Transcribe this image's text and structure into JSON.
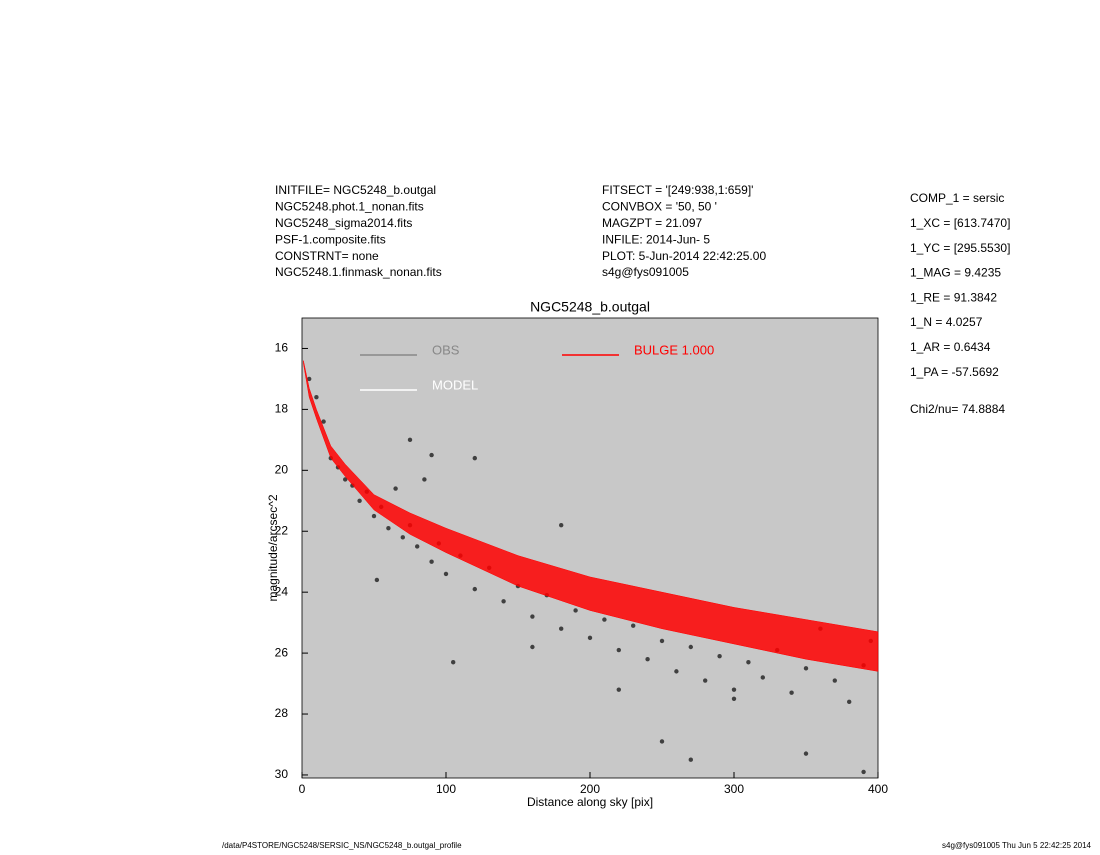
{
  "info_left": [
    "INITFILE= NGC5248_b.outgal",
    "NGC5248.phot.1_nonan.fits",
    "NGC5248_sigma2014.fits",
    "PSF-1.composite.fits",
    "CONSTRNT= none",
    "NGC5248.1.finmask_nonan.fits"
  ],
  "info_mid": [
    "FITSECT = '[249:938,1:659]'",
    "CONVBOX = '50, 50  '",
    "MAGZPT =            21.097",
    "INFILE: 2014-Jun- 5",
    "PLOT:  5-Jun-2014 22:42:25.00",
    "s4g@fys091005"
  ],
  "components": [
    "COMP_1  = sersic",
    "1_XC    = [613.7470]",
    "1_YC    = [295.5530]",
    "1_MAG   = 9.4235",
    "1_RE    = 91.3842",
    "1_N     = 4.0257",
    "1_AR    = 0.6434",
    "1_PA    = -57.5692"
  ],
  "chi2": "Chi2/nu=     74.8884",
  "footer_left": "/data/P4STORE/NGC5248/SERSIC_NS/NGC5248_b.outgal_profile",
  "footer_right": "s4g@fys091005  Thu Jun  5 22:42:25 2014",
  "chart_data": {
    "type": "scatter",
    "title": "NGC5248_b.outgal",
    "x_label": "Distance along sky [pix]",
    "y_label": "magnitude/arcsec^2",
    "xlim": [
      0,
      400
    ],
    "xticks": [
      0,
      100,
      200,
      300,
      400
    ],
    "ylim": [
      15,
      30.1
    ],
    "yticks": [
      16,
      18,
      20,
      22,
      24,
      26,
      28,
      30
    ],
    "y_inverted": true,
    "background": "#c8c8c8",
    "series": [
      {
        "name": "OBS",
        "color": "#404040",
        "legend_color": "#888888",
        "x": [
          5,
          10,
          15,
          20,
          25,
          30,
          35,
          40,
          45,
          50,
          55,
          60,
          65,
          70,
          75,
          80,
          85,
          90,
          95,
          100,
          110,
          120,
          130,
          140,
          150,
          160,
          170,
          180,
          190,
          200,
          210,
          220,
          230,
          240,
          250,
          260,
          270,
          280,
          290,
          300,
          310,
          320,
          330,
          340,
          350,
          360,
          370,
          380,
          390,
          395,
          52,
          75,
          105,
          180,
          250,
          270,
          350,
          390,
          300,
          220,
          160,
          120,
          90
        ],
        "values": [
          17.0,
          17.6,
          18.4,
          19.6,
          19.9,
          20.3,
          20.5,
          21.0,
          20.7,
          21.5,
          21.2,
          21.9,
          20.6,
          22.2,
          21.8,
          22.5,
          20.3,
          23.0,
          22.4,
          23.4,
          22.8,
          23.9,
          23.2,
          24.3,
          23.8,
          24.8,
          24.1,
          25.2,
          24.6,
          25.5,
          24.9,
          25.9,
          25.1,
          26.2,
          25.6,
          26.6,
          25.8,
          26.9,
          26.1,
          27.2,
          26.3,
          26.8,
          25.9,
          27.3,
          26.5,
          25.2,
          26.9,
          27.6,
          26.4,
          25.6,
          23.6,
          19.0,
          26.3,
          21.8,
          28.9,
          29.5,
          29.3,
          29.9,
          27.5,
          27.2,
          25.8,
          19.6,
          19.5
        ]
      },
      {
        "name": "MODEL",
        "color": "#ffffff",
        "x": [],
        "values": []
      },
      {
        "name": "BULGE  1.000",
        "color": "#ff0000",
        "x": [
          1,
          5,
          10,
          20,
          30,
          50,
          75,
          100,
          150,
          200,
          250,
          300,
          350,
          400
        ],
        "values": [
          16.4,
          17.3,
          18.0,
          19.2,
          19.8,
          20.8,
          21.4,
          21.9,
          22.8,
          23.5,
          24.0,
          24.5,
          24.9,
          25.3
        ],
        "values_faint": [
          16.5,
          17.6,
          18.3,
          19.6,
          20.2,
          21.3,
          22.1,
          22.7,
          23.8,
          24.6,
          25.2,
          25.7,
          26.2,
          26.6
        ]
      }
    ]
  }
}
